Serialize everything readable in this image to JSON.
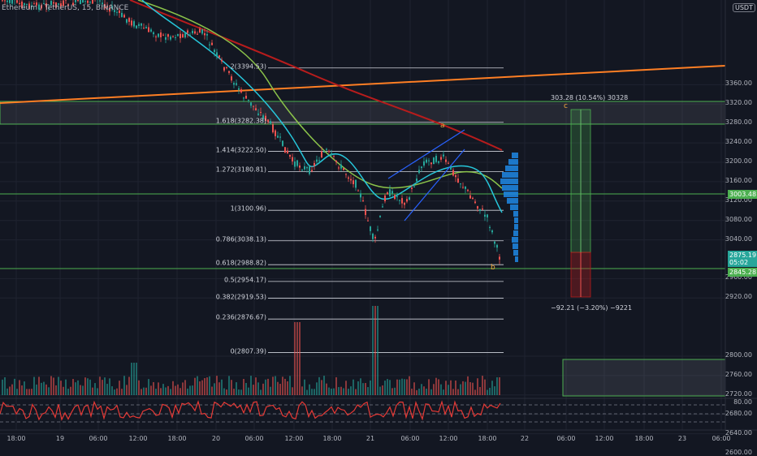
{
  "header": {
    "symbol": "Ethereum / TetherUS, 15, BINANCE",
    "currency": "USDT"
  },
  "price_axis": [
    "3360.00",
    "3320.00",
    "3280.00",
    "3240.00",
    "3200.00",
    "3160.00",
    "3120.00",
    "3080.00",
    "3040.00",
    "2960.00",
    "2920.00",
    "2800.00",
    "2760.00",
    "2720.00",
    "2680.00",
    "2640.00",
    "2600.00"
  ],
  "rsi_axis_label": "80.00",
  "time_axis": [
    "18:00",
    "19",
    "06:00",
    "12:00",
    "18:00",
    "20",
    "06:00",
    "12:00",
    "18:00",
    "21",
    "06:00",
    "12:00",
    "18:00",
    "22",
    "06:00",
    "12:00",
    "18:00",
    "23",
    "06:00"
  ],
  "price_tags": {
    "level_tag": "3003.48",
    "current_price": "2875.19",
    "countdown": "05:02",
    "support_tag": "2845.28"
  },
  "fib_levels": [
    {
      "label": "2(3394.53)",
      "value": 3394.53
    },
    {
      "label": "1.618(3282.38)",
      "value": 3282.38
    },
    {
      "label": "1.414(3222.50)",
      "value": 3222.5
    },
    {
      "label": "1.272(3180.81)",
      "value": 3180.81
    },
    {
      "label": "1(3100.96)",
      "value": 3100.96
    },
    {
      "label": "0.786(3038.13)",
      "value": 3038.13
    },
    {
      "label": "0.618(2988.82)",
      "value": 2988.82
    },
    {
      "label": "0.5(2954.17)",
      "value": 2954.17
    },
    {
      "label": "0.382(2919.53)",
      "value": 2919.53
    },
    {
      "label": "0.236(2876.67)",
      "value": 2876.67
    },
    {
      "label": "0(2807.39)",
      "value": 2807.39
    }
  ],
  "projection": {
    "long_text": "303.28 (10.54%) 30328",
    "short_text": "−92.21 (−3.20%) −9221"
  },
  "wave_labels": [
    "a",
    "b",
    "c"
  ],
  "colors": {
    "background": "#131722",
    "green_line": "#4caf50",
    "orange_line": "#ff7f24",
    "ma_red": "#b71c1c",
    "ma_green": "#8bc34a",
    "ma_cyan": "#26c6da",
    "candle_up": "#26a69a",
    "candle_down": "#ef5350",
    "volume_profile": "#1e88e5",
    "rsi_line": "#e53935"
  }
}
